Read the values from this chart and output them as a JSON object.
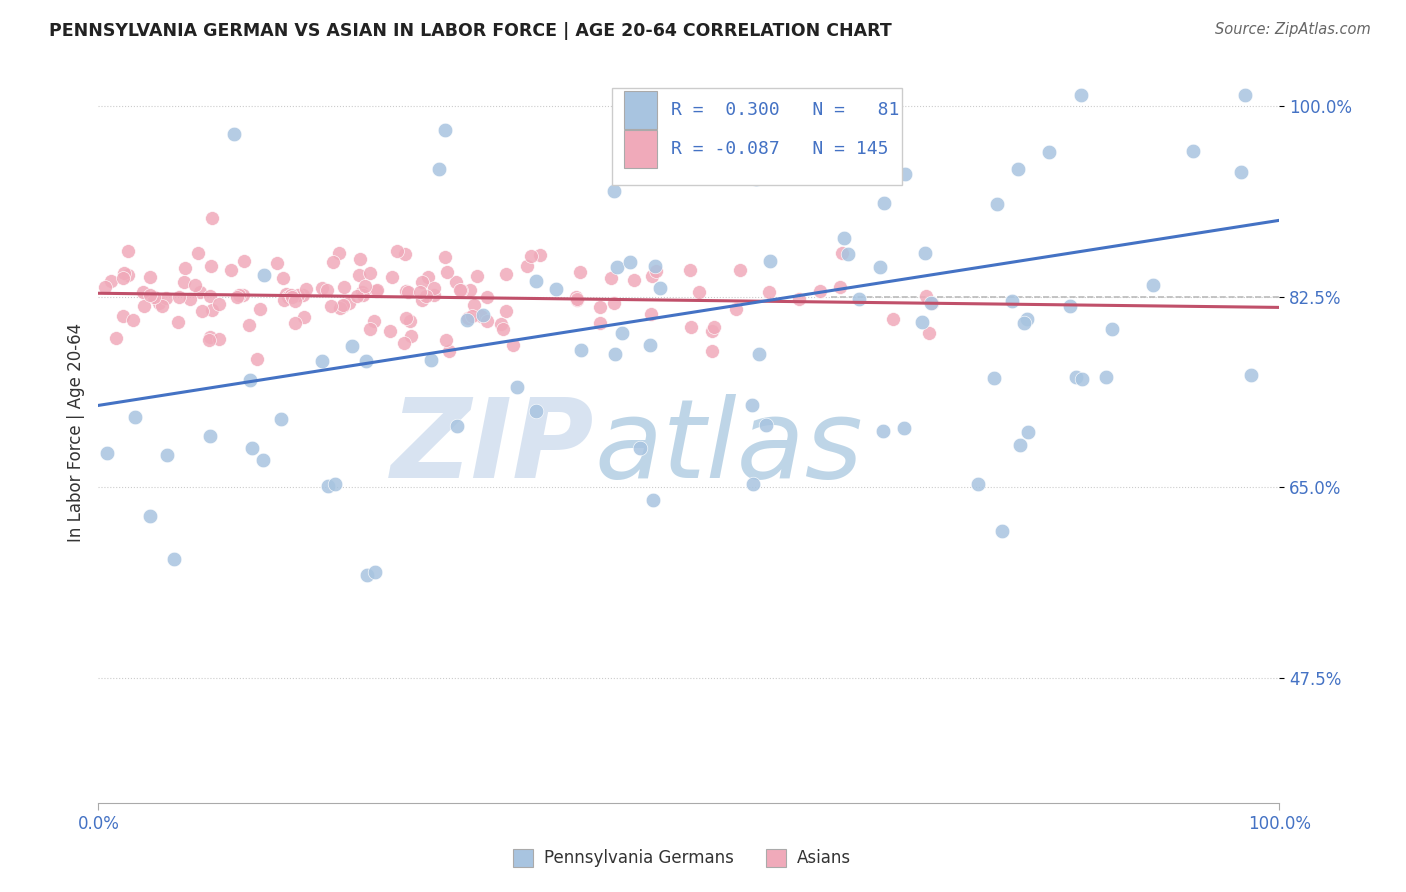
{
  "title": "PENNSYLVANIA GERMAN VS ASIAN IN LABOR FORCE | AGE 20-64 CORRELATION CHART",
  "source": "Source: ZipAtlas.com",
  "ylabel": "In Labor Force | Age 20-64",
  "xlim": [
    0.0,
    1.0
  ],
  "ylim": [
    0.36,
    1.04
  ],
  "yticks": [
    0.475,
    0.65,
    0.825,
    1.0
  ],
  "ytick_labels": [
    "47.5%",
    "65.0%",
    "82.5%",
    "100.0%"
  ],
  "xtick_labels": [
    "0.0%",
    "100.0%"
  ],
  "blue_color": "#a8c4e0",
  "pink_color": "#f0aaba",
  "blue_line_color": "#4472c4",
  "pink_line_color": "#c0506a",
  "dashed_line_color": "#bbbbbb",
  "dashed_line_y": 0.825,
  "watermark_zip": "ZIP",
  "watermark_atlas": "atlas",
  "bg_color": "#ffffff",
  "grid_color": "#cccccc",
  "tick_color": "#4472c4",
  "title_color": "#222222",
  "source_color": "#666666",
  "legend_text_color": "#4472c4",
  "legend_r1": "R =  0.300",
  "legend_n1": "N =  81",
  "legend_r2": "R = -0.087",
  "legend_n2": "N = 145",
  "bottom_label1": "Pennsylvania Germans",
  "bottom_label2": "Asians",
  "blue_trend_x0": 0.0,
  "blue_trend_y0": 0.725,
  "blue_trend_x1": 1.0,
  "blue_trend_y1": 0.895,
  "pink_trend_x0": 0.0,
  "pink_trend_y0": 0.828,
  "pink_trend_x1": 1.0,
  "pink_trend_y1": 0.815
}
